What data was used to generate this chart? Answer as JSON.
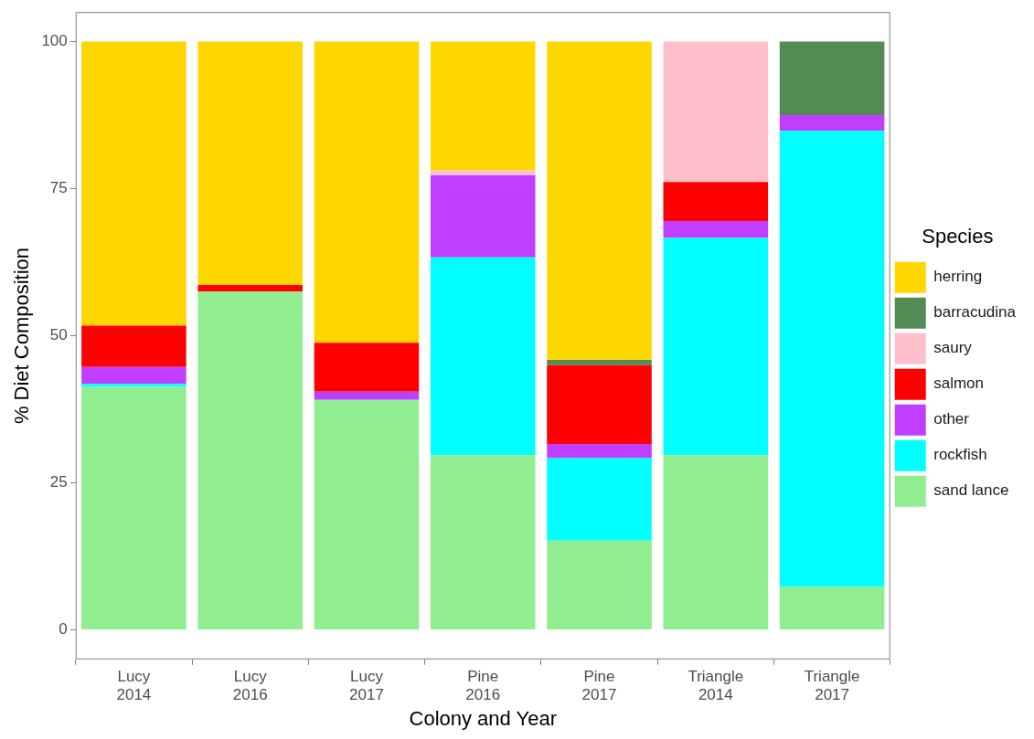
{
  "chart_data": {
    "type": "bar",
    "stacked": true,
    "xlabel": "Colony and Year",
    "ylabel": "% Diet Composition",
    "legend_title": "Species",
    "legend": "right",
    "grid": false,
    "categories": [
      "Lucy 2014",
      "Lucy 2016",
      "Lucy 2017",
      "Pine 2016",
      "Pine 2017",
      "Triangle 2014",
      "Triangle 2017"
    ],
    "ylim": [
      -5,
      105
    ],
    "yticks": [
      0,
      25,
      50,
      75,
      100
    ],
    "series": [
      {
        "name": "sand lance",
        "color": "#90ee90",
        "values": [
          41.3,
          57.5,
          39.1,
          29.7,
          15.2,
          29.7,
          7.3
        ]
      },
      {
        "name": "rockfish",
        "color": "#00ffff",
        "values": [
          0.5,
          0,
          0,
          33.6,
          14.0,
          36.9,
          77.5
        ]
      },
      {
        "name": "other",
        "color": "#bf3eff",
        "values": [
          2.9,
          0,
          1.4,
          14.0,
          2.4,
          2.9,
          2.7
        ]
      },
      {
        "name": "salmon",
        "color": "#ff0000",
        "values": [
          7.0,
          1.1,
          8.3,
          0,
          13.4,
          6.6,
          0
        ]
      },
      {
        "name": "saury",
        "color": "#ffc0cb",
        "values": [
          0,
          0,
          0,
          0.8,
          0,
          23.9,
          0
        ]
      },
      {
        "name": "barracudina",
        "color": "#548b54",
        "values": [
          0,
          0,
          0,
          0,
          0.9,
          0,
          12.5
        ]
      },
      {
        "name": "herring",
        "color": "#ffd700",
        "values": [
          48.3,
          41.4,
          51.2,
          21.9,
          54.1,
          0,
          0
        ]
      }
    ]
  }
}
